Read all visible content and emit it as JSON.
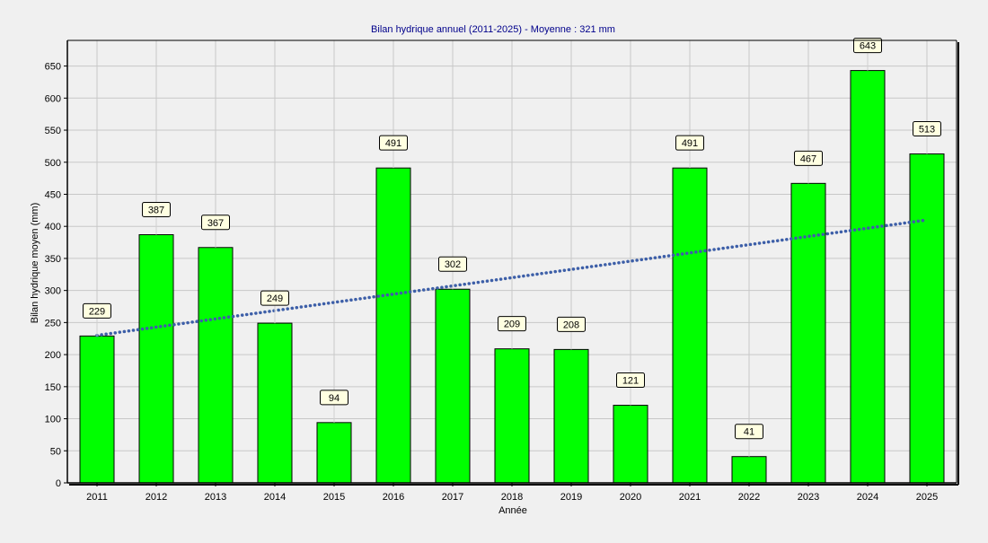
{
  "chart_data": {
    "type": "bar",
    "title": "Bilan hydrique annuel (2011-2025) - Moyenne : 321 mm",
    "xlabel": "Année",
    "ylabel": "Bilan hydrique moyen (mm)",
    "categories": [
      "2011",
      "2012",
      "2013",
      "2014",
      "2015",
      "2016",
      "2017",
      "2018",
      "2019",
      "2020",
      "2021",
      "2022",
      "2023",
      "2024",
      "2025"
    ],
    "values": [
      229,
      387,
      367,
      249,
      94,
      491,
      302,
      209,
      208,
      121,
      491,
      41,
      467,
      643,
      513
    ],
    "ylim": [
      0,
      690
    ],
    "yticks": [
      0,
      50,
      100,
      150,
      200,
      250,
      300,
      350,
      400,
      450,
      500,
      550,
      600,
      650
    ],
    "grid": true,
    "legend": "none",
    "trendline": {
      "style": "dotted",
      "start": 230,
      "end": 410
    },
    "colors": {
      "bar": "#00ff00",
      "bar_edge": "#000000",
      "trend": "#3d5fa8",
      "title": "#00008b",
      "grid": "#c8c8c8",
      "label_box": "#ffffe1"
    }
  }
}
